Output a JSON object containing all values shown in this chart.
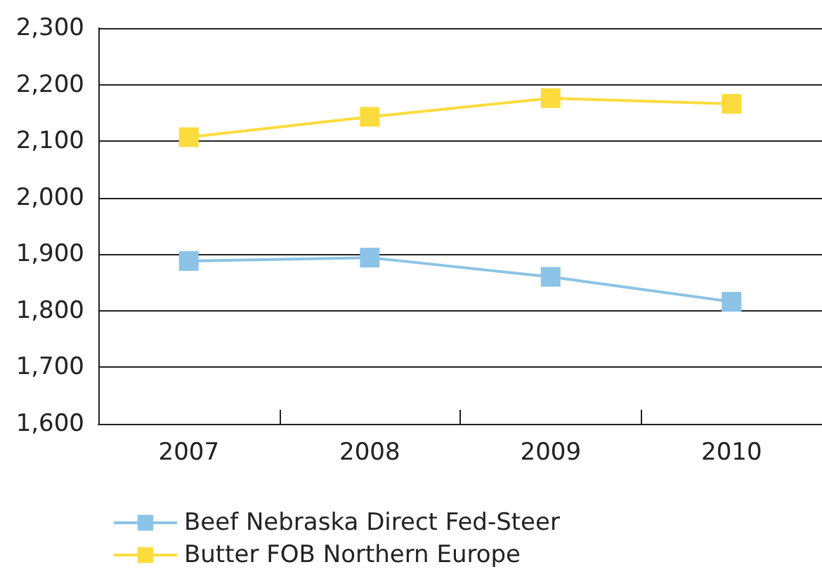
{
  "chart_data": {
    "type": "line",
    "categories": [
      "2007",
      "2008",
      "2009",
      "2010"
    ],
    "series": [
      {
        "name": "Beef Nebraska Direct Fed-Steer",
        "color": "#8cc3e6",
        "values": [
          1888,
          1894,
          1860,
          1816
        ]
      },
      {
        "name": "Butter FOB Northern Europe",
        "color": "#fcdc3c",
        "values": [
          2107,
          2143,
          2176,
          2166
        ]
      }
    ],
    "ylim": [
      1600,
      2300
    ],
    "yticks": [
      {
        "value": 1600,
        "label": "1,600"
      },
      {
        "value": 1700,
        "label": "1,700"
      },
      {
        "value": 1800,
        "label": "1,800"
      },
      {
        "value": 1900,
        "label": "1,900"
      },
      {
        "value": 2000,
        "label": "2,000"
      },
      {
        "value": 2100,
        "label": "2,100"
      },
      {
        "value": 2200,
        "label": "2,200"
      },
      {
        "value": 2300,
        "label": "2,300"
      }
    ],
    "grid": "y",
    "legend": "bottom left",
    "marker": "square",
    "line_style": "solid"
  }
}
